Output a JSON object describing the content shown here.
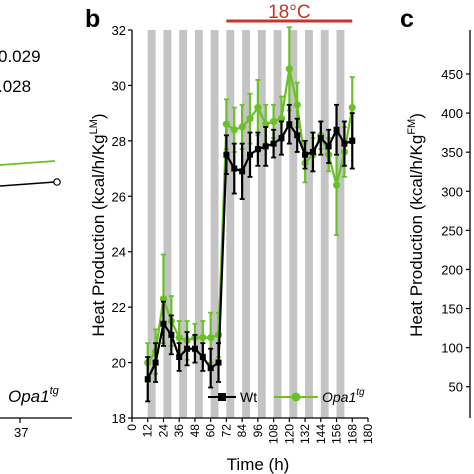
{
  "left_fragment": {
    "stat_line_1": "0.029",
    "stat_line_2": ".028",
    "legend_label": "Opa1",
    "legend_sup": "tg",
    "x_tick": "37"
  },
  "right_fragment": {
    "panel_letter": "c",
    "y_title": "Heat Production (kcal/h/Kg",
    "y_title_sup": "FM",
    "y_title_end": ")",
    "y_ticks": [
      "450",
      "400",
      "350",
      "300",
      "250",
      "200",
      "150",
      "100",
      "50"
    ]
  },
  "chart_data": {
    "type": "line",
    "panel_letter": "b",
    "temperature_label": "18°C",
    "temperature_period": [
      72,
      168
    ],
    "xlabel": "Time (h)",
    "ylabel": "Heat Production (kcal/h/Kg",
    "ylabel_sup": "LM",
    "ylabel_end": ")",
    "xlim": [
      0,
      180
    ],
    "ylim": [
      18,
      32
    ],
    "x_ticks": [
      0,
      12,
      24,
      36,
      48,
      60,
      72,
      84,
      96,
      108,
      120,
      132,
      144,
      156,
      168,
      180
    ],
    "y_ticks": [
      18,
      20,
      22,
      24,
      26,
      28,
      30,
      32
    ],
    "dark_periods": [
      [
        12,
        18
      ],
      [
        24,
        30
      ],
      [
        36,
        42
      ],
      [
        48,
        54
      ],
      [
        60,
        66
      ],
      [
        72,
        78
      ],
      [
        84,
        90
      ],
      [
        96,
        102
      ],
      [
        108,
        114
      ],
      [
        120,
        126
      ],
      [
        132,
        138
      ],
      [
        144,
        150
      ],
      [
        156,
        162
      ]
    ],
    "x": [
      12,
      18,
      24,
      30,
      36,
      42,
      48,
      54,
      60,
      66,
      72,
      78,
      84,
      90,
      96,
      102,
      108,
      114,
      120,
      126,
      132,
      138,
      144,
      150,
      156,
      162,
      168
    ],
    "series": [
      {
        "name": "Wt",
        "color": "#000000",
        "marker": "square",
        "values": [
          19.4,
          20.0,
          21.4,
          21.0,
          20.2,
          20.5,
          20.5,
          20.2,
          19.8,
          20.0,
          27.5,
          27.0,
          26.9,
          27.5,
          27.7,
          27.8,
          27.9,
          28.1,
          28.6,
          28.2,
          27.5,
          27.6,
          28.1,
          27.8,
          28.4,
          27.9,
          28.0
        ],
        "errors": [
          0.8,
          0.7,
          0.8,
          0.7,
          0.5,
          0.6,
          0.5,
          0.5,
          0.7,
          0.7,
          0.7,
          0.9,
          1.0,
          0.8,
          0.6,
          0.7,
          0.5,
          0.6,
          0.7,
          0.6,
          0.5,
          0.7,
          0.6,
          0.6,
          0.9,
          0.8,
          1.0
        ]
      },
      {
        "name": "Opa1",
        "name_sup": "tg",
        "color": "#6ac125",
        "marker": "circle",
        "values": [
          20.0,
          20.4,
          22.3,
          21.5,
          20.9,
          20.8,
          20.9,
          20.9,
          20.9,
          21.0,
          28.6,
          28.4,
          28.5,
          28.8,
          29.2,
          28.6,
          28.7,
          28.8,
          30.6,
          29.3,
          27.2,
          27.5,
          28.2,
          27.5,
          26.4,
          27.6,
          29.2
        ]
      }
    ],
    "legend": "bottom-right"
  }
}
